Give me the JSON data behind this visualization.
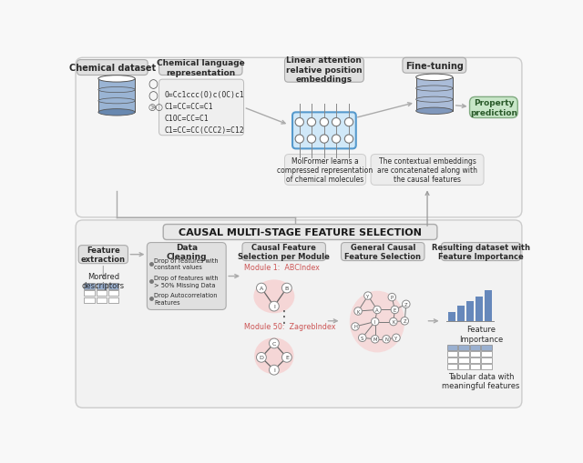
{
  "bg_color": "#f8f8f8",
  "box_gray": "#e0e0e0",
  "box_light": "#ececec",
  "box_blue_light": "#d0e8f8",
  "box_green": "#c8e6c8",
  "arrow_color": "#999999",
  "text_dark": "#2a2a2a",
  "text_medium": "#555555",
  "red_highlight": "#f8c8c8",
  "bar_blue": "#6688bb",
  "table_header_blue": "#9ab0d0",
  "module_label_color": "#cc5555",
  "db_blue_top": "#ffffff",
  "db_blue_mid": "#a0b8d8",
  "db_blue_bot": "#7090b8",
  "db2_top": "#ffffff",
  "db2_mid": "#b0bcd8",
  "db2_bot": "#8090b0",
  "title_top": "Chemical dataset",
  "title_chem_lang": "Chemical language\nrepresentation",
  "title_linear_attn": "Linear attention\nrelative position\nembeddings",
  "title_fine_tuning": "Fine-tuning",
  "title_property": "Property\nprediction",
  "smiles_text": "O=Cc1ccc(O)c(OC)c1\nC1=CC=CC=C1\nC1OC=CC=C1\nC1=CC=CC(CCC2)=C12",
  "molformer_text": "MolFormer learns a\ncompressed representation\nof chemical molecules",
  "concat_text": "The contextual embeddings\nare concatenated along with\nthe causal features",
  "bottom_title": "CAUSAL MULTI-STAGE FEATURE SELECTION",
  "feat_extract_label": "Feature\nextraction",
  "mordred_label": "Mordred\ndescriptors",
  "data_clean_label": "Data\nCleaning",
  "data_clean_bullets": [
    "Drop of features with\nconstant values",
    "Drop of features with\n> 50% Missing Data",
    "Drop Autocorrelation\nFeatures"
  ],
  "causal_per_module_label": "Causal Feature\nSelection per Module",
  "module1_label": "Module 1:  ABCIndex",
  "module50_label": "Module 50:  ZagrebIndex",
  "general_causal_label": "General Causal\nFeature Selection",
  "resulting_label": "Resulting dataset with\nFeature Importance",
  "feat_importance_label": "Feature\nImportance",
  "tabular_label": "Tabular data with\nmeaningful features"
}
